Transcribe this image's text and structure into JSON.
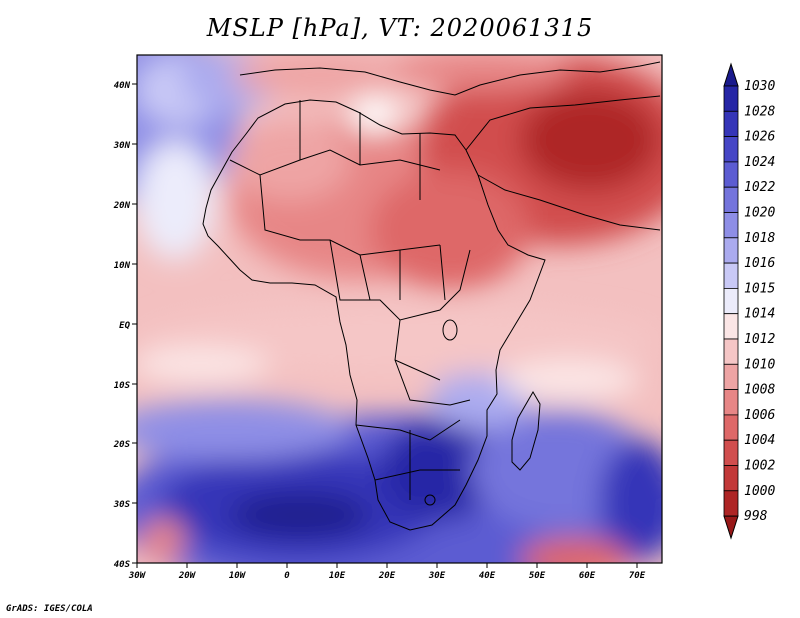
{
  "title": "MSLP [hPa], VT: 2020061315",
  "credit": "GrADS: IGES/COLA",
  "map": {
    "variable": "MSLP",
    "units": "hPa",
    "valid_time": "2020061315",
    "lon_ticks": [
      "30W",
      "20W",
      "10W",
      "0",
      "10E",
      "20E",
      "30E",
      "40E",
      "50E",
      "60E",
      "70E"
    ],
    "lat_ticks": [
      "40N",
      "30N",
      "20N",
      "10N",
      "EQ",
      "10S",
      "20S",
      "30S",
      "40S"
    ]
  },
  "colorbar": {
    "levels": [
      "1030",
      "1028",
      "1026",
      "1024",
      "1022",
      "1020",
      "1018",
      "1016",
      "1015",
      "1014",
      "1012",
      "1010",
      "1008",
      "1006",
      "1004",
      "1002",
      "1000",
      "998"
    ],
    "colors": [
      "#1a1a8c",
      "#2626a6",
      "#3535b8",
      "#4646c6",
      "#5c5cd2",
      "#7474dc",
      "#8e8ee6",
      "#ababef",
      "#c9c9f6",
      "#ececfb",
      "#fbe6e6",
      "#f5c6c6",
      "#eea4a4",
      "#e78686",
      "#de6868",
      "#d14e4e",
      "#c23838",
      "#ae2525",
      "#981818"
    ]
  }
}
